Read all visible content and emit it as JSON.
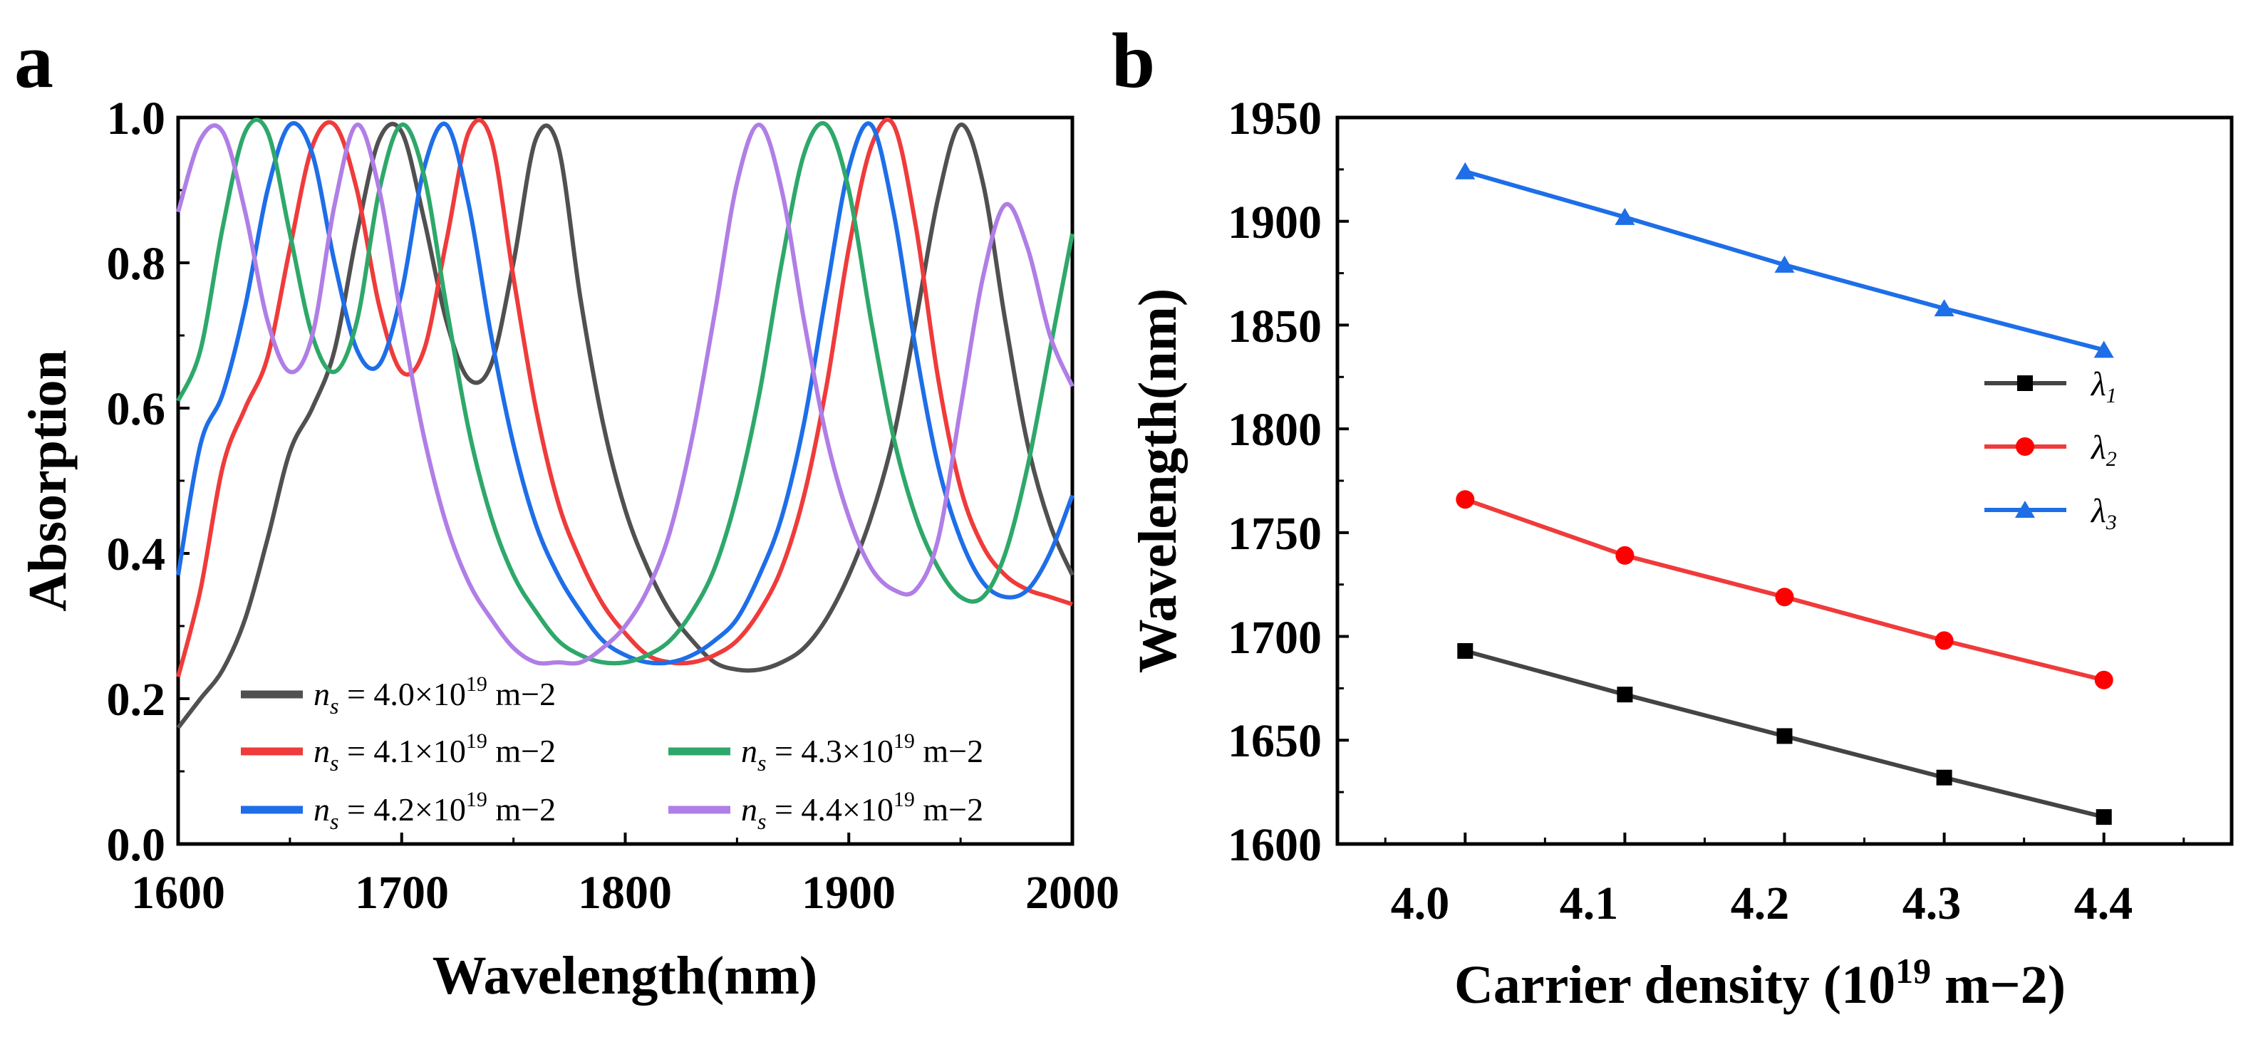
{
  "panels": [
    {
      "label": "a",
      "chart_data": {
        "type": "line",
        "title": "",
        "xlabel": "Wavelength(nm)",
        "ylabel": "Absorption",
        "xlim": [
          1600,
          2000
        ],
        "ylim": [
          0.0,
          1.0
        ],
        "xticks": [
          "1600",
          "1700",
          "1800",
          "1900",
          "2000"
        ],
        "yticks": [
          "0.0",
          "0.2",
          "0.4",
          "0.6",
          "0.8",
          "1.0"
        ],
        "legend_position": "bottom-left",
        "series": [
          {
            "name": "n_s = 4.0×10^19 m^-2",
            "label_var": "n",
            "label_sub": "s",
            "label_mid": " = 4.0×10",
            "label_sup": "19",
            "label_tail": " m−2",
            "color": "#505050",
            "x": [
              1600,
              1610,
              1620,
              1630,
              1640,
              1650,
              1660,
              1670,
              1680,
              1690,
              1700,
              1710,
              1720,
              1730,
              1740,
              1750,
              1760,
              1770,
              1780,
              1790,
              1800,
              1810,
              1820,
              1830,
              1840,
              1850,
              1860,
              1870,
              1880,
              1890,
              1900,
              1910,
              1920,
              1930,
              1940,
              1950,
              1960,
              1970,
              1980,
              1990,
              2000
            ],
            "y": [
              0.16,
              0.2,
              0.24,
              0.31,
              0.42,
              0.54,
              0.6,
              0.68,
              0.84,
              0.97,
              0.98,
              0.86,
              0.72,
              0.64,
              0.66,
              0.8,
              0.97,
              0.96,
              0.75,
              0.58,
              0.46,
              0.38,
              0.32,
              0.28,
              0.25,
              0.24,
              0.24,
              0.25,
              0.27,
              0.31,
              0.37,
              0.45,
              0.56,
              0.72,
              0.89,
              0.99,
              0.91,
              0.72,
              0.55,
              0.44,
              0.37
            ]
          },
          {
            "name": "n_s = 4.1×10^19 m^-2",
            "label_var": "n",
            "label_sub": "s",
            "label_mid": " = 4.1×10",
            "label_sup": "19",
            "label_tail": " m−2",
            "color": "#ef3b3b",
            "x": [
              1600,
              1610,
              1620,
              1630,
              1640,
              1650,
              1660,
              1670,
              1680,
              1690,
              1700,
              1710,
              1720,
              1730,
              1740,
              1750,
              1760,
              1770,
              1780,
              1790,
              1800,
              1810,
              1820,
              1830,
              1840,
              1850,
              1860,
              1870,
              1880,
              1890,
              1900,
              1910,
              1920,
              1930,
              1940,
              1950,
              1960,
              1970,
              1980,
              1990,
              2000
            ],
            "y": [
              0.23,
              0.35,
              0.52,
              0.6,
              0.67,
              0.82,
              0.96,
              0.99,
              0.9,
              0.74,
              0.65,
              0.68,
              0.83,
              0.98,
              0.97,
              0.78,
              0.6,
              0.47,
              0.39,
              0.33,
              0.29,
              0.26,
              0.25,
              0.25,
              0.26,
              0.28,
              0.32,
              0.38,
              0.48,
              0.63,
              0.82,
              0.96,
              0.99,
              0.85,
              0.64,
              0.49,
              0.41,
              0.37,
              0.35,
              0.34,
              0.33
            ]
          },
          {
            "name": "n_s = 4.2×10^19 m^-2",
            "label_var": "n",
            "label_sub": "s",
            "label_mid": " = 4.2×10",
            "label_sup": "19",
            "label_tail": " m−2",
            "color": "#1e6ee8",
            "x": [
              1600,
              1610,
              1620,
              1630,
              1640,
              1650,
              1660,
              1670,
              1680,
              1690,
              1700,
              1710,
              1720,
              1730,
              1740,
              1750,
              1760,
              1770,
              1780,
              1790,
              1800,
              1810,
              1820,
              1830,
              1840,
              1850,
              1860,
              1870,
              1880,
              1890,
              1900,
              1910,
              1920,
              1930,
              1940,
              1950,
              1960,
              1970,
              1980,
              1990,
              2000
            ],
            "y": [
              0.37,
              0.55,
              0.62,
              0.74,
              0.9,
              0.99,
              0.95,
              0.8,
              0.68,
              0.66,
              0.76,
              0.93,
              0.99,
              0.88,
              0.7,
              0.55,
              0.44,
              0.37,
              0.32,
              0.28,
              0.26,
              0.25,
              0.25,
              0.26,
              0.28,
              0.31,
              0.37,
              0.45,
              0.58,
              0.76,
              0.93,
              0.99,
              0.87,
              0.68,
              0.52,
              0.42,
              0.36,
              0.34,
              0.35,
              0.4,
              0.48
            ]
          },
          {
            "name": "n_s = 4.3×10^19 m^-2",
            "label_var": "n",
            "label_sub": "s",
            "label_mid": " = 4.3×10",
            "label_sup": "19",
            "label_tail": " m−2",
            "color": "#2ea86a",
            "x": [
              1600,
              1610,
              1620,
              1630,
              1640,
              1650,
              1660,
              1670,
              1680,
              1690,
              1700,
              1710,
              1720,
              1730,
              1740,
              1750,
              1760,
              1770,
              1780,
              1790,
              1800,
              1810,
              1820,
              1830,
              1840,
              1850,
              1860,
              1870,
              1880,
              1890,
              1900,
              1910,
              1920,
              1930,
              1940,
              1950,
              1960,
              1970,
              1980,
              1990,
              2000
            ],
            "y": [
              0.61,
              0.68,
              0.85,
              0.98,
              0.98,
              0.84,
              0.7,
              0.65,
              0.72,
              0.9,
              0.99,
              0.92,
              0.74,
              0.57,
              0.45,
              0.37,
              0.32,
              0.28,
              0.26,
              0.25,
              0.25,
              0.26,
              0.28,
              0.32,
              0.38,
              0.48,
              0.62,
              0.8,
              0.95,
              0.99,
              0.9,
              0.72,
              0.56,
              0.45,
              0.38,
              0.34,
              0.34,
              0.4,
              0.52,
              0.68,
              0.84
            ]
          },
          {
            "name": "n_s = 4.4×10^19 m^-2",
            "label_var": "n",
            "label_sub": "s",
            "label_mid": " = 4.4×10",
            "label_sup": "19",
            "label_tail": " m−2",
            "color": "#b07ee6",
            "x": [
              1600,
              1610,
              1620,
              1630,
              1640,
              1650,
              1660,
              1670,
              1680,
              1690,
              1700,
              1710,
              1720,
              1730,
              1740,
              1750,
              1760,
              1770,
              1780,
              1790,
              1800,
              1810,
              1820,
              1830,
              1840,
              1850,
              1860,
              1870,
              1880,
              1890,
              1900,
              1910,
              1920,
              1930,
              1940,
              1950,
              1960,
              1970,
              1980,
              1990,
              2000
            ],
            "y": [
              0.87,
              0.97,
              0.98,
              0.87,
              0.72,
              0.65,
              0.7,
              0.88,
              0.99,
              0.9,
              0.72,
              0.56,
              0.44,
              0.36,
              0.31,
              0.27,
              0.25,
              0.25,
              0.25,
              0.27,
              0.3,
              0.35,
              0.43,
              0.56,
              0.73,
              0.91,
              0.99,
              0.9,
              0.72,
              0.56,
              0.45,
              0.38,
              0.35,
              0.35,
              0.42,
              0.6,
              0.78,
              0.88,
              0.82,
              0.7,
              0.63
            ]
          }
        ]
      }
    },
    {
      "label": "b",
      "chart_data": {
        "type": "line",
        "title": "",
        "xlabel": "Carrier density (10",
        "xlabel_sup": "19",
        "xlabel_tail": " m−2)",
        "ylabel": "Wavelength(nm)",
        "xlim": [
          3.92,
          4.48
        ],
        "ylim": [
          1600,
          1950
        ],
        "xticks": [
          "4.0",
          "4.1",
          "4.2",
          "4.3",
          "4.4"
        ],
        "yticks": [
          "1600",
          "1650",
          "1700",
          "1750",
          "1800",
          "1850",
          "1900",
          "1950"
        ],
        "legend_position": "right",
        "series": [
          {
            "name": "λ1",
            "label_var": "λ",
            "label_sub": "1",
            "color": "#444444",
            "marker": "square",
            "x": [
              4.0,
              4.1,
              4.2,
              4.3,
              4.4
            ],
            "y": [
              1693,
              1672,
              1652,
              1632,
              1613
            ]
          },
          {
            "name": "λ2",
            "label_var": "λ",
            "label_sub": "2",
            "color": "#ef3b3b",
            "marker": "circle",
            "x": [
              4.0,
              4.1,
              4.2,
              4.3,
              4.4
            ],
            "y": [
              1766,
              1739,
              1719,
              1698,
              1679
            ]
          },
          {
            "name": "λ3",
            "label_var": "λ",
            "label_sub": "3",
            "color": "#1e6ee8",
            "marker": "triangle",
            "x": [
              4.0,
              4.1,
              4.2,
              4.3,
              4.4
            ],
            "y": [
              1924,
              1902,
              1879,
              1858,
              1838
            ]
          }
        ]
      }
    }
  ]
}
